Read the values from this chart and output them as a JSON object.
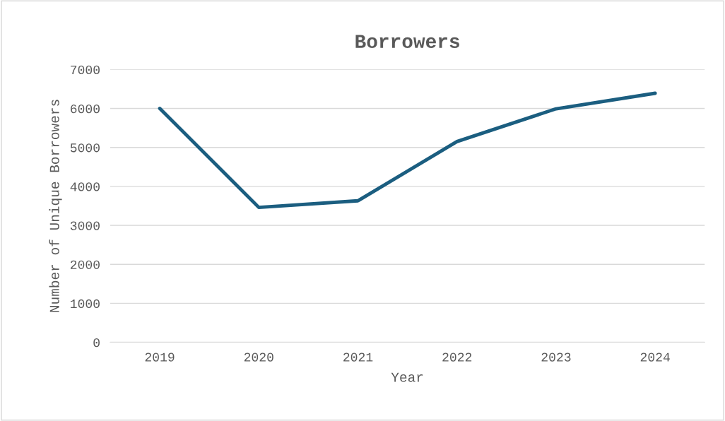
{
  "chart_data": {
    "type": "line",
    "title": "Borrowers",
    "xlabel": "Year",
    "ylabel": "Number of Unique Borrowers",
    "categories": [
      "2019",
      "2020",
      "2021",
      "2022",
      "2023",
      "2024"
    ],
    "series": [
      {
        "color": "#1b5e80",
        "values": [
          6000,
          3460,
          3630,
          5150,
          5990,
          6390
        ]
      }
    ],
    "ylim": [
      0,
      7000
    ],
    "yticks": [
      0,
      1000,
      2000,
      3000,
      4000,
      5000,
      6000,
      7000
    ],
    "grid": "y",
    "marker": "none",
    "line_style": "solid"
  }
}
